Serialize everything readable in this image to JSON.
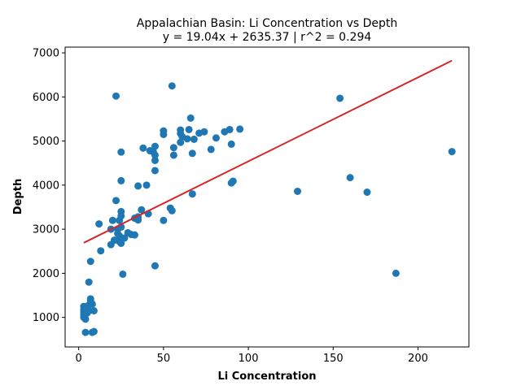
{
  "chart_data": {
    "type": "scatter",
    "title": "Appalachian Basin: Li Concentration vs Depth",
    "subtitle": "y = 19.04x + 2635.37 | r^2 = 0.294",
    "xlabel": "Li Concentration",
    "ylabel": "Depth",
    "xlim": [
      -8,
      230
    ],
    "ylim": [
      330,
      7130
    ],
    "xticks": [
      0,
      50,
      100,
      150,
      200
    ],
    "yticks": [
      1000,
      2000,
      3000,
      4000,
      5000,
      6000,
      7000
    ],
    "grid": false,
    "colors": {
      "points": "#1f77b4",
      "fit_line": "#d62728"
    },
    "regression": {
      "slope": 19.04,
      "intercept": 2635.37,
      "x_range": [
        3,
        220
      ]
    },
    "points": [
      [
        3,
        1250
      ],
      [
        3,
        1180
      ],
      [
        3,
        1120
      ],
      [
        3,
        1060
      ],
      [
        3,
        1000
      ],
      [
        4,
        960
      ],
      [
        4,
        660
      ],
      [
        5,
        1200
      ],
      [
        5,
        1100
      ],
      [
        6,
        1280
      ],
      [
        6,
        1150
      ],
      [
        6,
        1800
      ],
      [
        7,
        2270
      ],
      [
        7,
        1420
      ],
      [
        7,
        1380
      ],
      [
        8,
        1300
      ],
      [
        8,
        660
      ],
      [
        9,
        1150
      ],
      [
        9,
        680
      ],
      [
        12,
        3120
      ],
      [
        13,
        2510
      ],
      [
        19,
        3000
      ],
      [
        19,
        2650
      ],
      [
        20,
        3200
      ],
      [
        21,
        2750
      ],
      [
        22,
        3650
      ],
      [
        22,
        6020
      ],
      [
        23,
        3000
      ],
      [
        23,
        2900
      ],
      [
        24,
        3200
      ],
      [
        24,
        2850
      ],
      [
        24,
        2720
      ],
      [
        25,
        4100
      ],
      [
        25,
        4750
      ],
      [
        25,
        3400
      ],
      [
        25,
        3300
      ],
      [
        25,
        3050
      ],
      [
        25,
        2680
      ],
      [
        26,
        1980
      ],
      [
        27,
        2800
      ],
      [
        29,
        2920
      ],
      [
        31,
        2880
      ],
      [
        33,
        3250
      ],
      [
        33,
        2870
      ],
      [
        35,
        3210
      ],
      [
        35,
        3280
      ],
      [
        35,
        3980
      ],
      [
        37,
        3440
      ],
      [
        38,
        4840
      ],
      [
        40,
        4000
      ],
      [
        41,
        3350
      ],
      [
        42,
        4780
      ],
      [
        44,
        4750
      ],
      [
        45,
        4880
      ],
      [
        45,
        4680
      ],
      [
        45,
        4560
      ],
      [
        45,
        4330
      ],
      [
        45,
        2170
      ],
      [
        50,
        5230
      ],
      [
        50,
        5150
      ],
      [
        50,
        3200
      ],
      [
        54,
        3480
      ],
      [
        55,
        3420
      ],
      [
        55,
        6250
      ],
      [
        56,
        4850
      ],
      [
        56,
        4680
      ],
      [
        60,
        5250
      ],
      [
        60,
        5170
      ],
      [
        60,
        4970
      ],
      [
        61,
        5100
      ],
      [
        64,
        5050
      ],
      [
        65,
        5260
      ],
      [
        66,
        5520
      ],
      [
        67,
        4720
      ],
      [
        67,
        3800
      ],
      [
        68,
        5040
      ],
      [
        71,
        5180
      ],
      [
        74,
        5210
      ],
      [
        78,
        4810
      ],
      [
        81,
        5070
      ],
      [
        86,
        5210
      ],
      [
        89,
        5260
      ],
      [
        90,
        4930
      ],
      [
        90,
        4050
      ],
      [
        91,
        4090
      ],
      [
        95,
        5270
      ],
      [
        129,
        3860
      ],
      [
        154,
        5970
      ],
      [
        160,
        4170
      ],
      [
        170,
        3840
      ],
      [
        187,
        2000
      ],
      [
        220,
        4760
      ]
    ]
  }
}
